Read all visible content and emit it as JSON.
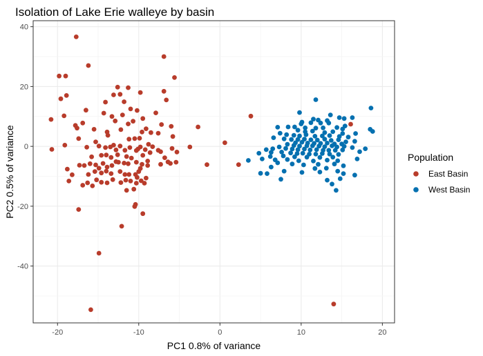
{
  "chart_data": {
    "type": "scatter",
    "title": "Isolation of Lake Erie walleye by basin",
    "xlabel": "PC1 0.8% of variance",
    "ylabel": "PC2 0.5% of variance",
    "xlim": [
      -23,
      21.5
    ],
    "ylim": [
      -59,
      42
    ],
    "x_ticks": [
      -20,
      -10,
      0,
      10,
      20
    ],
    "y_ticks": [
      40,
      20,
      0,
      -20,
      -40
    ],
    "x_tick_labels": [
      "-20",
      "-10",
      "0",
      "10",
      "20"
    ],
    "y_tick_labels": [
      "40",
      "20",
      "0",
      "-20",
      "-40"
    ],
    "grid": true,
    "legend": {
      "title": "Population",
      "position": "right"
    },
    "series": [
      {
        "name": "East Basin",
        "color": "#b83c2b",
        "points": [
          [
            -17.7,
            36.6
          ],
          [
            -6.9,
            30
          ],
          [
            -16.2,
            27
          ],
          [
            -20.8,
            9
          ],
          [
            -19.8,
            23.5
          ],
          [
            -19,
            23.5
          ],
          [
            -5.6,
            23
          ],
          [
            -19.6,
            15.9
          ],
          [
            -18.9,
            17
          ],
          [
            -12.6,
            19.8
          ],
          [
            -11.3,
            19.6
          ],
          [
            -13.1,
            17.2
          ],
          [
            -12.3,
            17.4
          ],
          [
            -9.8,
            18
          ],
          [
            -6.9,
            18.4
          ],
          [
            -6.6,
            15.5
          ],
          [
            -20.7,
            -1
          ],
          [
            -19.2,
            10.2
          ],
          [
            -17.8,
            7
          ],
          [
            -17.6,
            6.1
          ],
          [
            -14.1,
            14.8
          ],
          [
            -16.5,
            12.1
          ],
          [
            -14.3,
            11.1
          ],
          [
            -13.3,
            10
          ],
          [
            -12.9,
            8.5
          ],
          [
            -11.8,
            14.9
          ],
          [
            -11,
            12.5
          ],
          [
            -10.2,
            12
          ],
          [
            -7.9,
            11.2
          ],
          [
            -12,
            10.5
          ],
          [
            -11.3,
            7.5
          ],
          [
            -10.7,
            8.4
          ],
          [
            -9.5,
            9.3
          ],
          [
            -9.1,
            5.9
          ],
          [
            -9.6,
            4.8
          ],
          [
            -8.5,
            4.6
          ],
          [
            -7.6,
            4.4
          ],
          [
            -7.2,
            7.3
          ],
          [
            -6,
            6.7
          ],
          [
            -2.7,
            6.5
          ],
          [
            -16.9,
            7.8
          ],
          [
            -15.5,
            5.7
          ],
          [
            -13.9,
            4.8
          ],
          [
            -13.8,
            3.7
          ],
          [
            -12.2,
            5.6
          ],
          [
            -11.2,
            2.4
          ],
          [
            -10.5,
            2.6
          ],
          [
            -9.9,
            2.7
          ],
          [
            -8.8,
            0.7
          ],
          [
            -8.3,
            -0.1
          ],
          [
            -5.8,
            3.3
          ],
          [
            -3.7,
            -0.2
          ],
          [
            -19.1,
            0.4
          ],
          [
            -17.4,
            2.6
          ],
          [
            -16.4,
            -0.3
          ],
          [
            -15.3,
            1.5
          ],
          [
            -14.9,
            0.1
          ],
          [
            -14.1,
            -0.4
          ],
          [
            -13.5,
            -0.2
          ],
          [
            -13.1,
            0.4
          ],
          [
            -12.8,
            -1.2
          ],
          [
            -12.3,
            0.1
          ],
          [
            -11.7,
            -1.3
          ],
          [
            -11.1,
            -0.4
          ],
          [
            -10.3,
            -1.4
          ],
          [
            -10.1,
            -0.9
          ],
          [
            -9.8,
            -0.2
          ],
          [
            -9.2,
            -1.1
          ],
          [
            -8.6,
            -2.1
          ],
          [
            -7.6,
            -1.3
          ],
          [
            -7.3,
            -1.8
          ],
          [
            -5.9,
            -0.7
          ],
          [
            -5.3,
            -1.9
          ],
          [
            -15.8,
            -3.5
          ],
          [
            -14.6,
            -3
          ],
          [
            -14,
            -2.9
          ],
          [
            -13.4,
            -3.7
          ],
          [
            -12.6,
            -2.8
          ],
          [
            -11.5,
            -3.4
          ],
          [
            -10.9,
            -3.9
          ],
          [
            -9.5,
            -3
          ],
          [
            -8.9,
            -4.9
          ],
          [
            -6.8,
            -3.8
          ],
          [
            -6.4,
            -5.2
          ],
          [
            -5.4,
            -5.3
          ],
          [
            -18.8,
            -7.6
          ],
          [
            -17.3,
            -6.3
          ],
          [
            -16.7,
            -6.4
          ],
          [
            -16,
            -5.8
          ],
          [
            -15.3,
            -6.2
          ],
          [
            -14.9,
            -7.3
          ],
          [
            -14.4,
            -5.7
          ],
          [
            -13.9,
            -6.9
          ],
          [
            -13.3,
            -6.4
          ],
          [
            -12.8,
            -5.1
          ],
          [
            -12.5,
            -5.3
          ],
          [
            -11.8,
            -5.6
          ],
          [
            -11.3,
            -5.8
          ],
          [
            -10.3,
            -5.3
          ],
          [
            -9.6,
            -6
          ],
          [
            -9.8,
            -7.4
          ],
          [
            -10,
            -8.4
          ],
          [
            -8.9,
            -6.4
          ],
          [
            -7.3,
            -6
          ],
          [
            -6.1,
            -5.7
          ],
          [
            -18.2,
            -9.5
          ],
          [
            -16.2,
            -9.4
          ],
          [
            -15.4,
            -8.4
          ],
          [
            -14.6,
            -8.9
          ],
          [
            -14,
            -8.3
          ],
          [
            -13.4,
            -9.1
          ],
          [
            -12.3,
            -8.4
          ],
          [
            -11.7,
            -9.4
          ],
          [
            -11.2,
            -9.4
          ],
          [
            -10.4,
            -9.4
          ],
          [
            -10.2,
            -10.4
          ],
          [
            -9.7,
            -11.5
          ],
          [
            -9.1,
            -10.6
          ],
          [
            -18.6,
            -11.6
          ],
          [
            -16.9,
            -13
          ],
          [
            -16.3,
            -12.2
          ],
          [
            -15.7,
            -13.2
          ],
          [
            -15.2,
            -11.2
          ],
          [
            -14.6,
            -12
          ],
          [
            -13.9,
            -12.2
          ],
          [
            -13.2,
            -11.1
          ],
          [
            -12.2,
            -12.1
          ],
          [
            -11.6,
            -11.3
          ],
          [
            -11,
            -11.6
          ],
          [
            -10.3,
            -12.3
          ],
          [
            -9.3,
            -12.3
          ],
          [
            -10.6,
            -14.3
          ],
          [
            -11.5,
            -14.7
          ],
          [
            -17.4,
            -21.1
          ],
          [
            -10.4,
            -19.4
          ],
          [
            -10.5,
            -20.1
          ],
          [
            -9.5,
            -22.5
          ],
          [
            -12.1,
            -26.7
          ],
          [
            -14.9,
            -35.7
          ],
          [
            -15.9,
            -54.6
          ],
          [
            0.6,
            1.2
          ],
          [
            2.3,
            -6.1
          ],
          [
            3.8,
            10.1
          ],
          [
            -1.6,
            -6.1
          ],
          [
            14,
            -52.7
          ],
          [
            16.1,
            7.4
          ]
        ]
      },
      {
        "name": "West Basin",
        "color": "#0570b0",
        "points": [
          [
            11.8,
            15.6
          ],
          [
            18.6,
            12.8
          ],
          [
            9.8,
            11.3
          ],
          [
            13.6,
            10.5
          ],
          [
            11.5,
            9.1
          ],
          [
            12.1,
            8.8
          ],
          [
            13.2,
            8.6
          ],
          [
            14.7,
            9.6
          ],
          [
            15.3,
            9.3
          ],
          [
            16.3,
            9.6
          ],
          [
            10.1,
            8.1
          ],
          [
            11.2,
            7.9
          ],
          [
            12.4,
            7.8
          ],
          [
            13.4,
            7.8
          ],
          [
            15.4,
            6.8
          ],
          [
            9.2,
            6.5
          ],
          [
            10.5,
            6.2
          ],
          [
            11.8,
            6.1
          ],
          [
            12.7,
            6.2
          ],
          [
            14.4,
            6.3
          ],
          [
            15.1,
            5.8
          ],
          [
            18.5,
            5.7
          ],
          [
            18.8,
            5
          ],
          [
            7.1,
            6.4
          ],
          [
            8.4,
            6.5
          ],
          [
            9.6,
            5.4
          ],
          [
            10.5,
            4.9
          ],
          [
            11.4,
            5.1
          ],
          [
            12.9,
            4.6
          ],
          [
            13.9,
            4.9
          ],
          [
            15.1,
            4.3
          ],
          [
            16.7,
            4.3
          ],
          [
            7.4,
            4.4
          ],
          [
            8.2,
            3.9
          ],
          [
            9.1,
            3.7
          ],
          [
            9.8,
            3.5
          ],
          [
            10.6,
            3.9
          ],
          [
            11.7,
            3.4
          ],
          [
            12.6,
            3.5
          ],
          [
            13.5,
            3.6
          ],
          [
            14.7,
            3.3
          ],
          [
            15.8,
            3.1
          ],
          [
            6.6,
            2.9
          ],
          [
            7.9,
            2.5
          ],
          [
            8.8,
            2.3
          ],
          [
            9.6,
            2.3
          ],
          [
            10.4,
            2.4
          ],
          [
            11.2,
            2.2
          ],
          [
            12,
            2.1
          ],
          [
            12.9,
            2.4
          ],
          [
            13.7,
            2
          ],
          [
            14.6,
            2.2
          ],
          [
            15.5,
            1.5
          ],
          [
            16.6,
            1.7
          ],
          [
            9.3,
            1.2
          ],
          [
            10.1,
            1.4
          ],
          [
            10.8,
            1.1
          ],
          [
            11.6,
            1
          ],
          [
            12.4,
            1
          ],
          [
            13.2,
            1.1
          ],
          [
            14.1,
            0.8
          ],
          [
            15,
            0.8
          ],
          [
            8.3,
            0.7
          ],
          [
            9.1,
            0.3
          ],
          [
            9.8,
            0.1
          ],
          [
            10.7,
            0.2
          ],
          [
            11.4,
            0.2
          ],
          [
            12.2,
            0.1
          ],
          [
            12.9,
            -0.1
          ],
          [
            13.8,
            0.2
          ],
          [
            14.4,
            -0.2
          ],
          [
            15.3,
            0
          ],
          [
            16.3,
            -0.4
          ],
          [
            17.9,
            -0.8
          ],
          [
            5.7,
            -1.1
          ],
          [
            6.5,
            -0.8
          ],
          [
            7.3,
            -0.2
          ],
          [
            8.1,
            -0.7
          ],
          [
            8.9,
            -0.9
          ],
          [
            9.6,
            -1.1
          ],
          [
            10.4,
            -0.9
          ],
          [
            11.1,
            -1.2
          ],
          [
            11.9,
            -1.1
          ],
          [
            12.7,
            -1.3
          ],
          [
            13.4,
            -1.3
          ],
          [
            14.2,
            -1.3
          ],
          [
            15.1,
            -1.2
          ],
          [
            4.8,
            -2.3
          ],
          [
            6.3,
            -2
          ],
          [
            7.6,
            -1.9
          ],
          [
            8.7,
            -2.2
          ],
          [
            9.5,
            -2.4
          ],
          [
            10.2,
            -2.3
          ],
          [
            11,
            -2.6
          ],
          [
            11.8,
            -2.6
          ],
          [
            12.6,
            -2.4
          ],
          [
            13.5,
            -2.6
          ],
          [
            14.6,
            -2.7
          ],
          [
            17.2,
            -1.8
          ],
          [
            6.2,
            -3.4
          ],
          [
            7.8,
            -3.2
          ],
          [
            9.2,
            -3.5
          ],
          [
            10.7,
            -3.6
          ],
          [
            12.3,
            -3.7
          ],
          [
            13.9,
            -3.6
          ],
          [
            3.5,
            -4.7
          ],
          [
            5.2,
            -4.2
          ],
          [
            6.8,
            -4.5
          ],
          [
            8.3,
            -4.4
          ],
          [
            9.7,
            -4.8
          ],
          [
            11.5,
            -4.9
          ],
          [
            13.2,
            -4.6
          ],
          [
            14.5,
            -4.8
          ],
          [
            16.9,
            -4.2
          ],
          [
            7.1,
            -5.5
          ],
          [
            8.9,
            -5.9
          ],
          [
            10.3,
            -6.2
          ],
          [
            12.1,
            -6
          ],
          [
            14.1,
            -5.9
          ],
          [
            6.3,
            -6.9
          ],
          [
            11.7,
            -7.4
          ],
          [
            13.1,
            -7.3
          ],
          [
            15.2,
            -6.5
          ],
          [
            5,
            -9
          ],
          [
            5.8,
            -9.1
          ],
          [
            7.9,
            -8.3
          ],
          [
            10.1,
            -8.7
          ],
          [
            12.3,
            -8.6
          ],
          [
            14.5,
            -8.3
          ],
          [
            15.2,
            -9.1
          ],
          [
            16.6,
            -9.6
          ],
          [
            7.5,
            -11
          ],
          [
            13.2,
            -11.3
          ],
          [
            14.8,
            -10.8
          ],
          [
            13.8,
            -12.6
          ],
          [
            14.3,
            -14.7
          ],
          [
            10,
            7.5
          ]
        ]
      }
    ]
  }
}
